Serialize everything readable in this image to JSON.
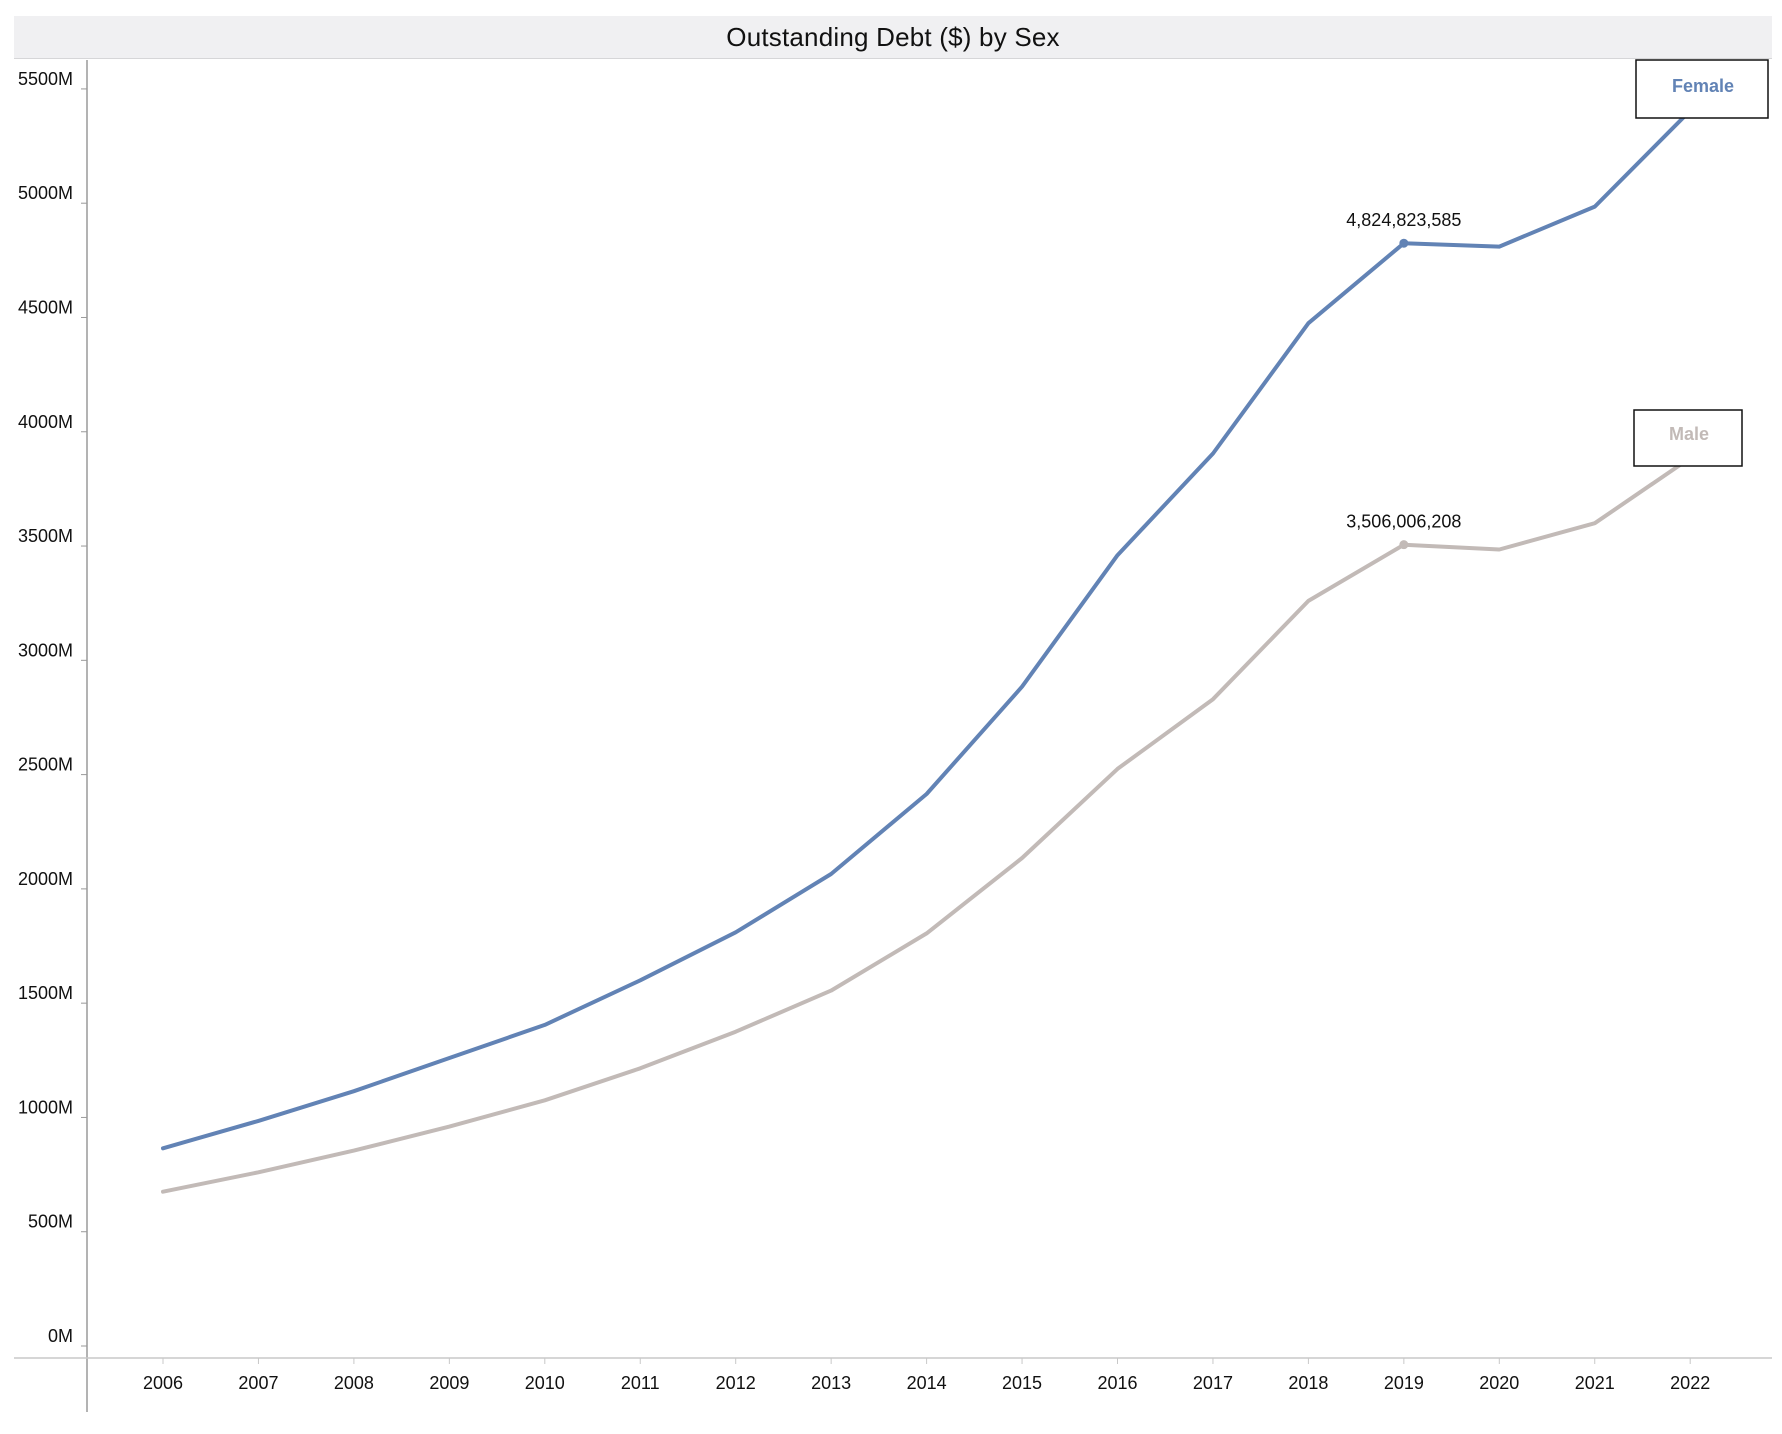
{
  "chart_data": {
    "type": "line",
    "title": "Outstanding Debt ($) by Sex",
    "xlabel": "",
    "ylabel": "",
    "x": [
      "2006",
      "2007",
      "2008",
      "2009",
      "2010",
      "2011",
      "2012",
      "2013",
      "2014",
      "2015",
      "2016",
      "2017",
      "2018",
      "2019",
      "2020",
      "2021",
      "2022"
    ],
    "y_ticks": [
      "0M",
      "500M",
      "1000M",
      "1500M",
      "2000M",
      "2500M",
      "3000M",
      "3500M",
      "4000M",
      "4500M",
      "5000M",
      "5500M"
    ],
    "ylim": [
      0,
      5700
    ],
    "grid": false,
    "series": [
      {
        "name": "Female",
        "color": "#6283b5",
        "values": [
          865,
          985,
          1115,
          1260,
          1405,
          1600,
          1810,
          2065,
          2415,
          2885,
          3460,
          3905,
          4475,
          4825,
          4810,
          4985,
          5405
        ],
        "data_label": {
          "index": 13,
          "text": "4,824,823,585"
        }
      },
      {
        "name": "Male",
        "color": "#c2bab7",
        "values": [
          675,
          760,
          855,
          960,
          1075,
          1215,
          1375,
          1555,
          1805,
          2135,
          2525,
          2830,
          3260,
          3506,
          3485,
          3600,
          3885
        ],
        "data_label": {
          "index": 13,
          "text": "3,506,006,208"
        }
      }
    ]
  }
}
